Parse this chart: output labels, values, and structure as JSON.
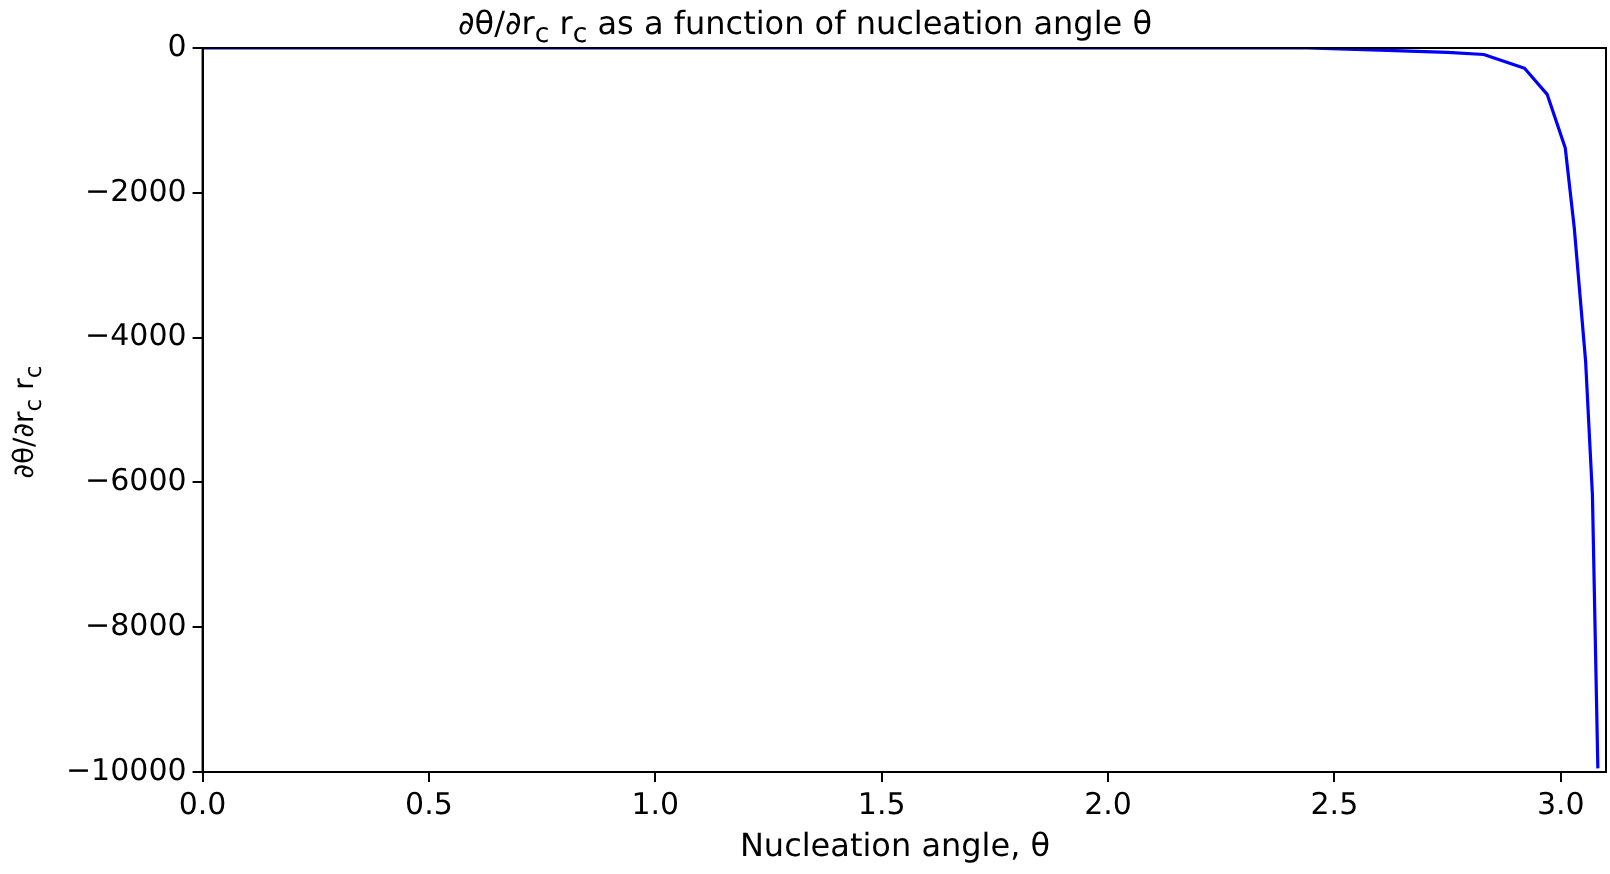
{
  "chart_data": {
    "type": "line",
    "title": "∂θ/∂r$_{c}$ r$_{c}$ as a function of nucleation angle θ",
    "xlabel": "Nucleation angle, θ",
    "ylabel": "∂θ/∂r$_{c}$ r$_{c}$",
    "x": [
      0,
      0.5,
      1.0,
      1.5,
      2.0,
      2.3,
      2.44,
      2.6,
      2.75,
      2.83,
      2.92,
      2.97,
      3.01,
      3.03,
      3.055,
      3.07,
      3.082
    ],
    "series": [
      {
        "color": "#0000ff",
        "values": [
          0,
          0,
          0,
          0,
          0,
          0,
          0,
          -30,
          -60,
          -90,
          -280,
          -640,
          -1380,
          -2490,
          -4330,
          -6170,
          -9950
        ]
      }
    ],
    "xlim": [
      0,
      3.1
    ],
    "xticks": [
      {
        "value": 0,
        "label": "0.0"
      },
      {
        "value": 0.5,
        "label": "0.5"
      },
      {
        "value": 1.0,
        "label": "1.0"
      },
      {
        "value": 1.5,
        "label": "1.5"
      },
      {
        "value": 2.0,
        "label": "2.0"
      },
      {
        "value": 2.5,
        "label": "2.5"
      },
      {
        "value": 3.0,
        "label": "3.0"
      }
    ],
    "ylim": [
      -10000,
      0
    ],
    "yticks": [
      -10000,
      -8000,
      -6000,
      -4000,
      -2000,
      0
    ],
    "grid": false,
    "legend": false,
    "marker": "none",
    "line_style": "solid"
  }
}
